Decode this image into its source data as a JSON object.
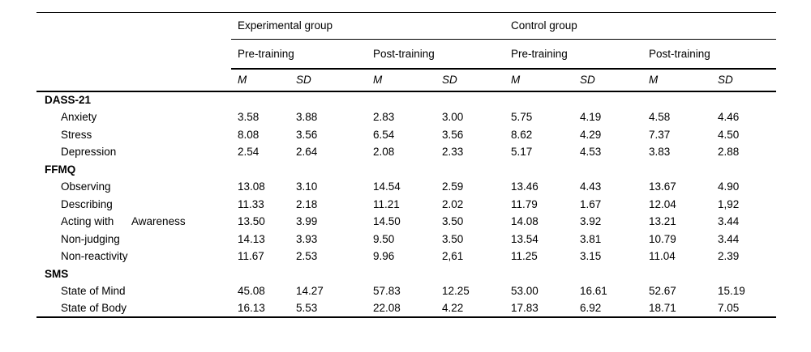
{
  "table": {
    "groups": [
      "Experimental group",
      "Control group"
    ],
    "phases": [
      "Pre-training",
      "Post-training",
      "Pre-training",
      "Post-training"
    ],
    "stats": [
      "M",
      "SD",
      "M",
      "SD",
      "M",
      "SD",
      "M",
      "SD"
    ],
    "sections": [
      {
        "label": "DASS-21",
        "rows": [
          {
            "label": "Anxiety",
            "values": [
              "3.58",
              "3.88",
              "2.83",
              "3.00",
              "5.75",
              "4.19",
              "4.58",
              "4.46"
            ]
          },
          {
            "label": "Stress",
            "values": [
              "8.08",
              "3.56",
              "6.54",
              "3.56",
              "8.62",
              "4.29",
              "7.37",
              "4.50"
            ]
          },
          {
            "label": "Depression",
            "values": [
              "2.54",
              "2.64",
              "2.08",
              "2.33",
              "5.17",
              "4.53",
              "3.83",
              "2.88"
            ]
          }
        ]
      },
      {
        "label": "FFMQ",
        "rows": [
          {
            "label": "Observing",
            "values": [
              "13.08",
              "3.10",
              "14.54",
              "2.59",
              "13.46",
              "4.43",
              "13.67",
              "4.90"
            ]
          },
          {
            "label": "Describing",
            "values": [
              "11.33",
              "2.18",
              "11.21",
              "2.02",
              "11.79",
              "1.67",
              "12.04",
              "1,92"
            ]
          },
          {
            "label": "Acting with      Awareness",
            "values": [
              "13.50",
              "3.99",
              "14.50",
              "3.50",
              "14.08",
              "3.92",
              "13.21",
              "3.44"
            ]
          },
          {
            "label": "Non-judging",
            "values": [
              "14.13",
              "3.93",
              "9.50",
              "3.50",
              "13.54",
              "3.81",
              "10.79",
              "3.44"
            ]
          },
          {
            "label": "Non-reactivity",
            "values": [
              "11.67",
              "2.53",
              "9.96",
              "2,61",
              "11.25",
              "3.15",
              "11.04",
              "2.39"
            ]
          }
        ]
      },
      {
        "label": "SMS",
        "rows": [
          {
            "label": "State of Mind",
            "values": [
              "45.08",
              "14.27",
              "57.83",
              "12.25",
              "53.00",
              "16.61",
              "52.67",
              "15.19"
            ]
          },
          {
            "label": "State of Body",
            "values": [
              "16.13",
              "5.53",
              "22.08",
              "4.22",
              "17.83",
              "6.92",
              "18.71",
              "7.05"
            ]
          }
        ]
      }
    ]
  }
}
